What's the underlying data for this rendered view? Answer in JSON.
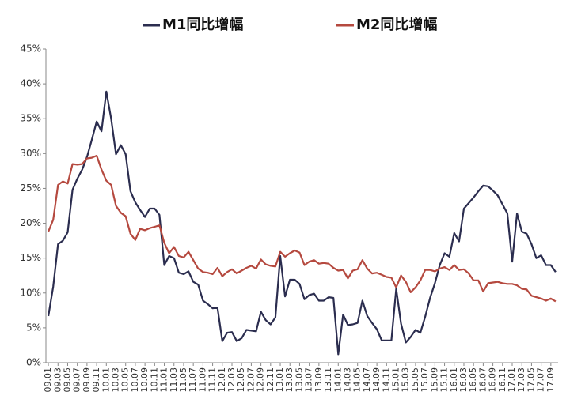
{
  "chart_data": {
    "type": "line",
    "categories": [
      "09.01",
      null,
      "09.03",
      null,
      "09.05",
      null,
      "09.07",
      null,
      "09.09",
      null,
      "09.11",
      null,
      "10.01",
      null,
      "10.03",
      null,
      "10.05",
      null,
      "10.07",
      null,
      "10.09",
      null,
      "10.11",
      null,
      "11.01",
      null,
      "11.03",
      null,
      "11.05",
      null,
      "11.07",
      null,
      "11.09",
      null,
      "11.11",
      null,
      "12.01",
      null,
      "12.03",
      null,
      "12.05",
      null,
      "12.07",
      null,
      "12.09",
      null,
      "12.11",
      null,
      "13.01",
      null,
      "13.03",
      null,
      "13.05",
      null,
      "13.07",
      null,
      "13.09",
      null,
      "13.11",
      null,
      "14.01",
      null,
      "14.03",
      null,
      "14.05",
      null,
      "14.07",
      null,
      "14.09",
      null,
      "14.11",
      null,
      "15.01",
      null,
      "15.03",
      null,
      "15.05",
      null,
      "15.07",
      null,
      "15.09",
      null,
      "15.11",
      null,
      "16.01",
      null,
      "16.03",
      null,
      "16.05",
      null,
      "16.07",
      null,
      "16.09",
      null,
      "16.11",
      null,
      "17.01",
      null,
      "17.03",
      null,
      "17.05",
      null,
      "17.07",
      null,
      "17.09",
      null
    ],
    "series": [
      {
        "name": "M1同比增幅",
        "color": "#2b2d4f",
        "values": [
          6.7,
          10.9,
          17.0,
          17.5,
          18.7,
          24.8,
          26.4,
          27.7,
          29.5,
          32.0,
          34.6,
          33.2,
          38.9,
          35.0,
          29.9,
          31.2,
          29.9,
          24.6,
          23.0,
          21.9,
          20.9,
          22.1,
          22.1,
          21.2,
          14.0,
          15.3,
          15.0,
          12.9,
          12.7,
          13.1,
          11.6,
          11.2,
          8.9,
          8.4,
          7.8,
          7.9,
          3.1,
          4.3,
          4.4,
          3.1,
          3.5,
          4.7,
          4.6,
          4.5,
          7.3,
          6.1,
          5.5,
          6.5,
          15.3,
          9.5,
          11.9,
          11.9,
          11.3,
          9.1,
          9.7,
          9.9,
          8.9,
          8.9,
          9.4,
          9.3,
          1.2,
          6.9,
          5.4,
          5.5,
          5.7,
          8.9,
          6.7,
          5.7,
          4.8,
          3.2,
          3.2,
          3.2,
          10.6,
          5.6,
          2.9,
          3.7,
          4.7,
          4.3,
          6.6,
          9.3,
          11.4,
          14.0,
          15.7,
          15.2,
          18.6,
          17.4,
          22.1,
          22.9,
          23.7,
          24.6,
          25.4,
          25.3,
          24.7,
          24.0,
          22.7,
          21.4,
          14.5,
          21.4,
          18.8,
          18.5,
          17.0,
          15.0,
          15.4,
          14.0,
          14.0,
          13.0
        ]
      },
      {
        "name": "M2同比增幅",
        "color": "#b5493f",
        "values": [
          18.8,
          20.5,
          25.5,
          26.0,
          25.7,
          28.5,
          28.4,
          28.5,
          29.3,
          29.4,
          29.7,
          27.7,
          26.1,
          25.5,
          22.5,
          21.5,
          21.0,
          18.5,
          17.6,
          19.2,
          19.0,
          19.3,
          19.5,
          19.7,
          17.2,
          15.7,
          16.6,
          15.3,
          15.1,
          15.9,
          14.7,
          13.5,
          13.0,
          12.9,
          12.7,
          13.6,
          12.4,
          13.0,
          13.4,
          12.8,
          13.2,
          13.6,
          13.9,
          13.5,
          14.8,
          14.1,
          13.9,
          13.8,
          15.9,
          15.2,
          15.7,
          16.1,
          15.8,
          14.0,
          14.5,
          14.7,
          14.2,
          14.3,
          14.2,
          13.6,
          13.2,
          13.3,
          12.1,
          13.2,
          13.4,
          14.7,
          13.5,
          12.8,
          12.9,
          12.6,
          12.3,
          12.2,
          10.8,
          12.5,
          11.6,
          10.1,
          10.8,
          11.8,
          13.3,
          13.3,
          13.1,
          13.5,
          13.7,
          13.3,
          14.0,
          13.3,
          13.4,
          12.8,
          11.8,
          11.8,
          10.2,
          11.4,
          11.5,
          11.6,
          11.4,
          11.3,
          11.3,
          11.1,
          10.6,
          10.5,
          9.6,
          9.4,
          9.2,
          8.9,
          9.2,
          8.8
        ]
      }
    ],
    "ylim": [
      0,
      45
    ],
    "yticks": [
      {
        "value": 0,
        "label": "0%"
      },
      {
        "value": 5,
        "label": "5%"
      },
      {
        "value": 10,
        "label": "10%"
      },
      {
        "value": 15,
        "label": "15%"
      },
      {
        "value": 20,
        "label": "20%"
      },
      {
        "value": 25,
        "label": "25%"
      },
      {
        "value": 30,
        "label": "30%"
      },
      {
        "value": 35,
        "label": "35%"
      },
      {
        "value": 40,
        "label": "40%"
      },
      {
        "value": 45,
        "label": "45%"
      }
    ],
    "grid": false,
    "legend": "top"
  }
}
